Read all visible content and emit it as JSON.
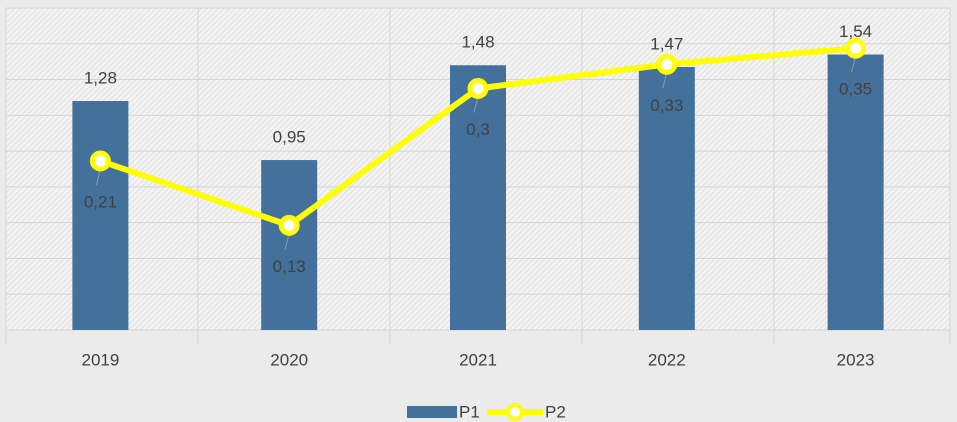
{
  "chart_data": {
    "type": "bar_line",
    "categories": [
      "2019",
      "2020",
      "2021",
      "2022",
      "2023"
    ],
    "series": [
      {
        "name": "P1",
        "type": "bar",
        "color": "#44709c",
        "values": [
          1.28,
          0.95,
          1.48,
          1.47,
          1.54
        ],
        "value_labels": [
          "1,28",
          "0,95",
          "1,48",
          "1,47",
          "1,54"
        ]
      },
      {
        "name": "P2",
        "type": "line",
        "axis": "y2",
        "color": "#ffff00",
        "values": [
          0.21,
          0.13,
          0.3,
          0.33,
          0.35
        ],
        "value_labels": [
          "0,21",
          "0,13",
          "0,3",
          "0,33",
          "0,35"
        ]
      }
    ],
    "ylim": [
      0,
      1.8
    ],
    "yticks": [
      0,
      0.2,
      0.4,
      0.6,
      0.8,
      1.0,
      1.2,
      1.4,
      1.6,
      1.8
    ],
    "y2lim": [
      0,
      0.4
    ],
    "grid": true,
    "legend": "bottom"
  }
}
